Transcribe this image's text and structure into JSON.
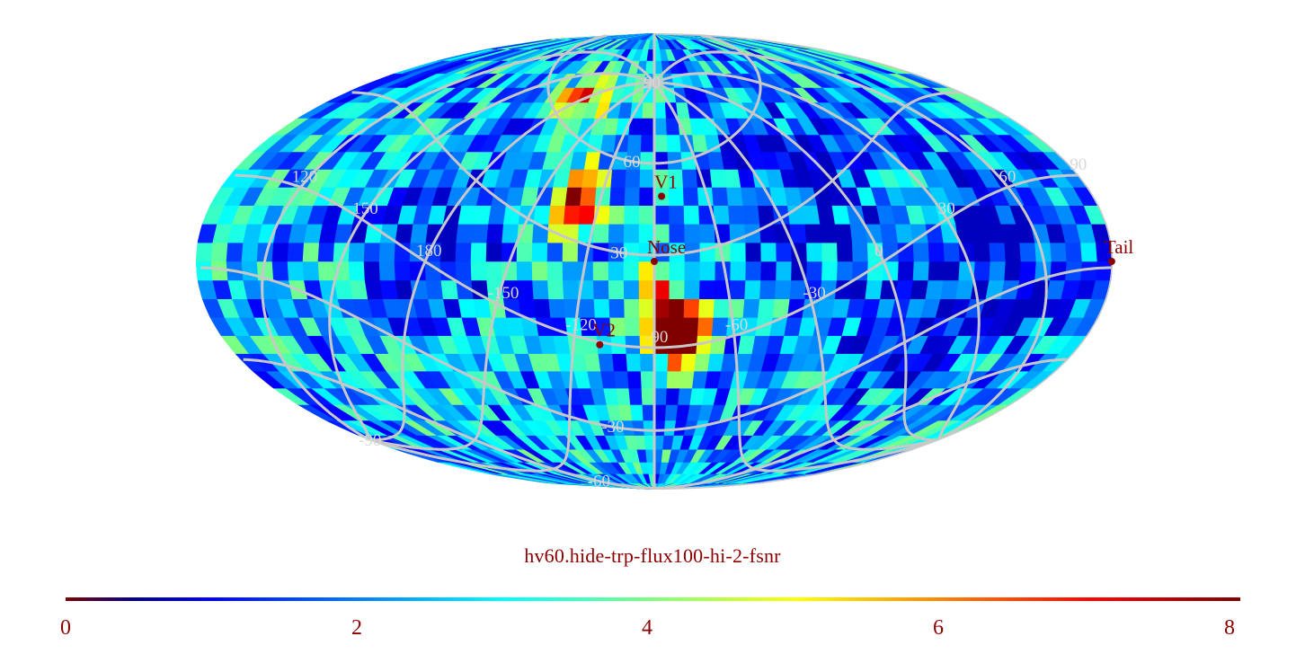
{
  "map": {
    "title": "hv60.hide-trp-flux100-hi-2-fsnr",
    "projection": "mollweide",
    "grid": {
      "meridian_labels": [
        "60",
        "30",
        "0",
        "-30",
        "-60",
        "-90",
        "-120",
        "-150",
        "180",
        "150",
        "120",
        "90"
      ],
      "parallel_labels": [
        "90",
        "60",
        "30",
        "-30",
        "-60",
        "-90"
      ],
      "grid_color": "#c8c8c8"
    },
    "markers": [
      {
        "label": "V1",
        "lon_deg": 3,
        "lat_deg": 21
      },
      {
        "label": "Nose",
        "lon_deg": 0,
        "lat_deg": 0
      },
      {
        "label": "V2",
        "lon_deg": -23,
        "lat_deg": -27
      },
      {
        "label": "Tail",
        "lon_deg": 180,
        "lat_deg": 0
      }
    ],
    "marker_color": "#8b0000",
    "hotspots": [
      {
        "lon_deg": 12,
        "lat_deg": -24,
        "value": 7.6
      },
      {
        "lon_deg": 8,
        "lat_deg": -22,
        "value": 7.2
      },
      {
        "lon_deg": 4,
        "lat_deg": -20,
        "value": 6.8
      },
      {
        "lon_deg": -30,
        "lat_deg": 23,
        "value": 6.5
      },
      {
        "lon_deg": -33,
        "lat_deg": 17,
        "value": 6.0
      },
      {
        "lon_deg": -40,
        "lat_deg": 55,
        "value": 6.3
      },
      {
        "lon_deg": 2,
        "lat_deg": -6,
        "value": 5.2
      }
    ],
    "cold_regions": [
      {
        "lon_deg": 140,
        "lat_deg": 5,
        "value": 0.8
      },
      {
        "lon_deg": 60,
        "lat_deg": 25,
        "value": 1.2
      },
      {
        "lon_deg": -90,
        "lat_deg": 10,
        "value": 1.4
      },
      {
        "lon_deg": 100,
        "lat_deg": -20,
        "value": 1.6
      }
    ]
  },
  "colorbar": {
    "min": 0,
    "max": 8,
    "colormap": "jet",
    "tick_labels": [
      "0",
      "2",
      "4",
      "6",
      "8"
    ],
    "label_color": "#8b0000"
  }
}
